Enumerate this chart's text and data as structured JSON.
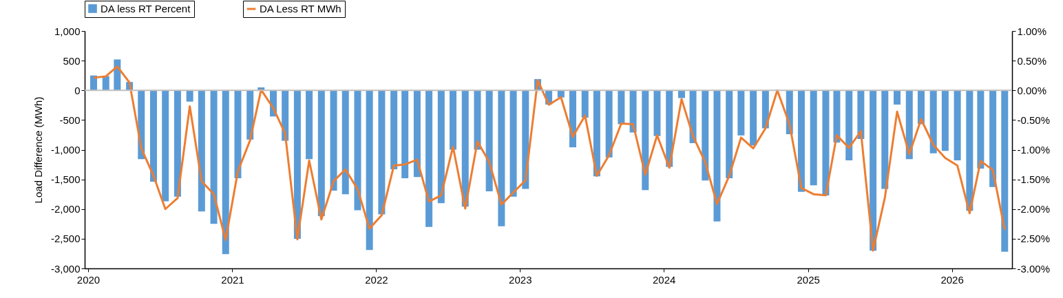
{
  "chart_data": {
    "type": "bar",
    "ylabel": "Load Difference (MWh)",
    "legend": "top left",
    "x": [
      "2020-01-15",
      "2020-02-15",
      "2020-03-15",
      "2020-04-15",
      "2020-05-15",
      "2020-06-15",
      "2020-07-15",
      "2020-08-15",
      "2020-09-15",
      "2020-10-15",
      "2020-11-15",
      "2020-12-15",
      "2021-01-15",
      "2021-02-15",
      "2021-03-15",
      "2021-04-15",
      "2021-05-15",
      "2021-06-15",
      "2021-07-15",
      "2021-08-15",
      "2021-09-15",
      "2021-10-15",
      "2021-11-15",
      "2021-12-15",
      "2022-01-15",
      "2022-02-15",
      "2022-03-15",
      "2022-04-15",
      "2022-05-15",
      "2022-06-15",
      "2022-07-15",
      "2022-08-15",
      "2022-09-15",
      "2022-10-15",
      "2022-11-15",
      "2022-12-15",
      "2023-01-15",
      "2023-02-15",
      "2023-03-15",
      "2023-04-15",
      "2023-05-15",
      "2023-06-15",
      "2023-07-15",
      "2023-08-15",
      "2023-09-15",
      "2023-10-15",
      "2023-11-15",
      "2023-12-15",
      "2024-01-15",
      "2024-02-15",
      "2024-03-15",
      "2024-04-15",
      "2024-05-15",
      "2024-06-15",
      "2024-07-15",
      "2024-08-15",
      "2024-09-15",
      "2024-10-15",
      "2024-11-15",
      "2024-12-15",
      "2025-01-15",
      "2025-02-15",
      "2025-03-15",
      "2025-04-15",
      "2025-05-15",
      "2025-06-15",
      "2025-07-15",
      "2025-08-15",
      "2025-09-15",
      "2025-10-15",
      "2025-11-15",
      "2025-12-15",
      "2026-01-15",
      "2026-02-15",
      "2026-03-15",
      "2026-04-15",
      "2026-05-15"
    ],
    "xlim": [
      "2020-01-01",
      "2026-05-25"
    ],
    "xticks": [
      "2020",
      "2021",
      "2022",
      "2023",
      "2024",
      "2025",
      "2026"
    ],
    "ylim": [
      -3000,
      1000
    ],
    "yticks": [
      {
        "value": -3000,
        "label": "-3,000"
      },
      {
        "value": -2500,
        "label": "-2,500"
      },
      {
        "value": -2000,
        "label": "-2,000"
      },
      {
        "value": -1500,
        "label": "-1,500"
      },
      {
        "value": -1000,
        "label": "-1,000"
      },
      {
        "value": -500,
        "label": "-500"
      },
      {
        "value": 0,
        "label": "0"
      },
      {
        "value": 500,
        "label": "500"
      },
      {
        "value": 1000,
        "label": "1,000"
      }
    ],
    "y2lim": [
      -3,
      1
    ],
    "y2ticks": [
      {
        "value": -3,
        "label": "-3.00%"
      },
      {
        "value": -2.5,
        "label": "-2.50%"
      },
      {
        "value": -2,
        "label": "-2.00%"
      },
      {
        "value": -1.5,
        "label": "-1.50%"
      },
      {
        "value": -1,
        "label": "-1.00%"
      },
      {
        "value": -0.5,
        "label": "-0.50%"
      },
      {
        "value": 0,
        "label": "0.00%"
      },
      {
        "value": 0.5,
        "label": "0.50%"
      },
      {
        "value": 1,
        "label": "1.00%"
      }
    ],
    "ref_lines": [
      {
        "axis": "y",
        "value": 0,
        "color": "#bfbfbf"
      }
    ],
    "series": [
      {
        "name": "DA less RT Percent",
        "axis": "y2",
        "color": "#5b9bd5",
        "values": [
          0.25,
          0.24,
          0.52,
          0.14,
          -1.16,
          -1.54,
          -1.87,
          -1.79,
          -0.19,
          -2.04,
          -2.25,
          -2.76,
          -1.48,
          -0.83,
          0.05,
          -0.44,
          -0.85,
          -2.5,
          -1.16,
          -2.12,
          -1.69,
          -1.75,
          -2.02,
          -2.69,
          -2.09,
          -1.33,
          -1.48,
          -1.46,
          -2.3,
          -1.9,
          -1.0,
          -1.96,
          -1.0,
          -1.7,
          -2.29,
          -1.79,
          -1.66,
          0.19,
          -0.24,
          -0.12,
          -0.96,
          -0.46,
          -1.45,
          -1.13,
          -0.57,
          -0.71,
          -1.68,
          -0.77,
          -1.29,
          -0.13,
          -0.89,
          -1.52,
          -2.21,
          -1.48,
          -0.76,
          -0.93,
          -0.64,
          0,
          -0.74,
          -1.71,
          -1.6,
          -1.77,
          -0.88,
          -1.18,
          -0.82,
          -2.7,
          -1.66,
          -0.24,
          -1.16,
          -0.57,
          -1.06,
          -1.02,
          -1.18,
          -2.03,
          -1.32,
          -1.63,
          -2.72
        ]
      },
      {
        "name": "DA Less RT MWh",
        "type": "line",
        "color": "#ed7d31",
        "values": [
          213,
          235,
          402,
          131,
          -977,
          -1440,
          -2000,
          -1815,
          -270,
          -1530,
          -1750,
          -2520,
          -1365,
          -842,
          10,
          -301,
          -726,
          -2510,
          -1182,
          -2175,
          -1530,
          -1333,
          -1665,
          -2329,
          -2105,
          -1267,
          -1248,
          -1170,
          -1873,
          -1769,
          -950,
          -1992,
          -861,
          -1208,
          -1923,
          -1722,
          -1518,
          170,
          -243,
          -116,
          -784,
          -425,
          -1440,
          -1093,
          -560,
          -571,
          -1421,
          -757,
          -1305,
          -147,
          -770,
          -1210,
          -1915,
          -1440,
          -796,
          -977,
          -641,
          0,
          -571,
          -1645,
          -1750,
          -1769,
          -757,
          -970,
          -687,
          -2700,
          -1808,
          -359,
          -1074,
          -487,
          -919,
          -1139,
          -1267,
          -2071,
          -1190,
          -1344,
          -2348
        ]
      }
    ]
  }
}
